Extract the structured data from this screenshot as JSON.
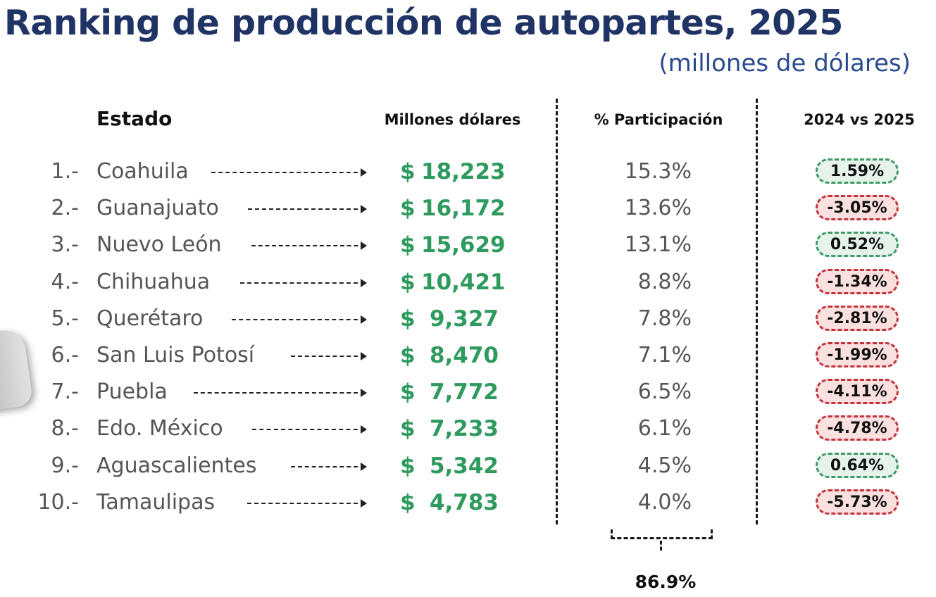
{
  "header": {
    "title": "Ranking de producción de autopartes, 2025",
    "subtitle": "(millones de dólares)"
  },
  "columns": {
    "estado": "Estado",
    "millones": "Millones dólares",
    "participacion": "% Participación",
    "variacion": "2024 vs 2025"
  },
  "currency_symbol": "$",
  "rows": [
    {
      "rank": "1.-",
      "state": "Coahuila",
      "value": "18,223",
      "share": "15.3%",
      "change": "1.59%",
      "trend": "pos"
    },
    {
      "rank": "2.-",
      "state": "Guanajuato",
      "value": "16,172",
      "share": "13.6%",
      "change": "-3.05%",
      "trend": "neg"
    },
    {
      "rank": "3.-",
      "state": "Nuevo León",
      "value": "15,629",
      "share": "13.1%",
      "change": "0.52%",
      "trend": "pos"
    },
    {
      "rank": "4.-",
      "state": "Chihuahua",
      "value": "10,421",
      "share": "8.8%",
      "change": "-1.34%",
      "trend": "neg"
    },
    {
      "rank": "5.-",
      "state": "Querétaro",
      "value": "9,327",
      "share": "7.8%",
      "change": "-2.81%",
      "trend": "neg"
    },
    {
      "rank": "6.-",
      "state": "San Luis Potosí",
      "value": "8,470",
      "share": "7.1%",
      "change": "-1.99%",
      "trend": "neg"
    },
    {
      "rank": "7.-",
      "state": "Puebla",
      "value": "7,772",
      "share": "6.5%",
      "change": "-4.11%",
      "trend": "neg"
    },
    {
      "rank": "8.-",
      "state": "Edo. México",
      "value": "7,233",
      "share": "6.1%",
      "change": "-4.78%",
      "trend": "neg"
    },
    {
      "rank": "9.-",
      "state": "Aguascalientes",
      "value": "5,342",
      "share": "4.5%",
      "change": "0.64%",
      "trend": "pos"
    },
    {
      "rank": "10.-",
      "state": "Tamaulipas",
      "value": "4,783",
      "share": "4.0%",
      "change": "-5.73%",
      "trend": "neg"
    }
  ],
  "total_share": "86.9%",
  "colors": {
    "title": "#1f3365",
    "value": "#2e9a5e",
    "positive": "#3e9a64",
    "negative": "#c4323c"
  },
  "chart_data": {
    "type": "table",
    "title": "Ranking de producción de autopartes, 2025",
    "subtitle": "(millones de dólares)",
    "columns": [
      "Estado",
      "Millones dólares",
      "% Participación",
      "2024 vs 2025"
    ],
    "categories": [
      "Coahuila",
      "Guanajuato",
      "Nuevo León",
      "Chihuahua",
      "Querétaro",
      "San Luis Potosí",
      "Puebla",
      "Edo. México",
      "Aguascalientes",
      "Tamaulipas"
    ],
    "series": [
      {
        "name": "Millones dólares",
        "values": [
          18223,
          16172,
          15629,
          10421,
          9327,
          8470,
          7772,
          7233,
          5342,
          4783
        ]
      },
      {
        "name": "% Participación",
        "values": [
          15.3,
          13.6,
          13.1,
          8.8,
          7.8,
          7.1,
          6.5,
          6.1,
          4.5,
          4.0
        ]
      },
      {
        "name": "2024 vs 2025",
        "values": [
          1.59,
          -3.05,
          0.52,
          -1.34,
          -2.81,
          -1.99,
          -4.11,
          -4.78,
          0.64,
          -5.73
        ]
      }
    ],
    "annotations": [
      "86.9%"
    ]
  }
}
